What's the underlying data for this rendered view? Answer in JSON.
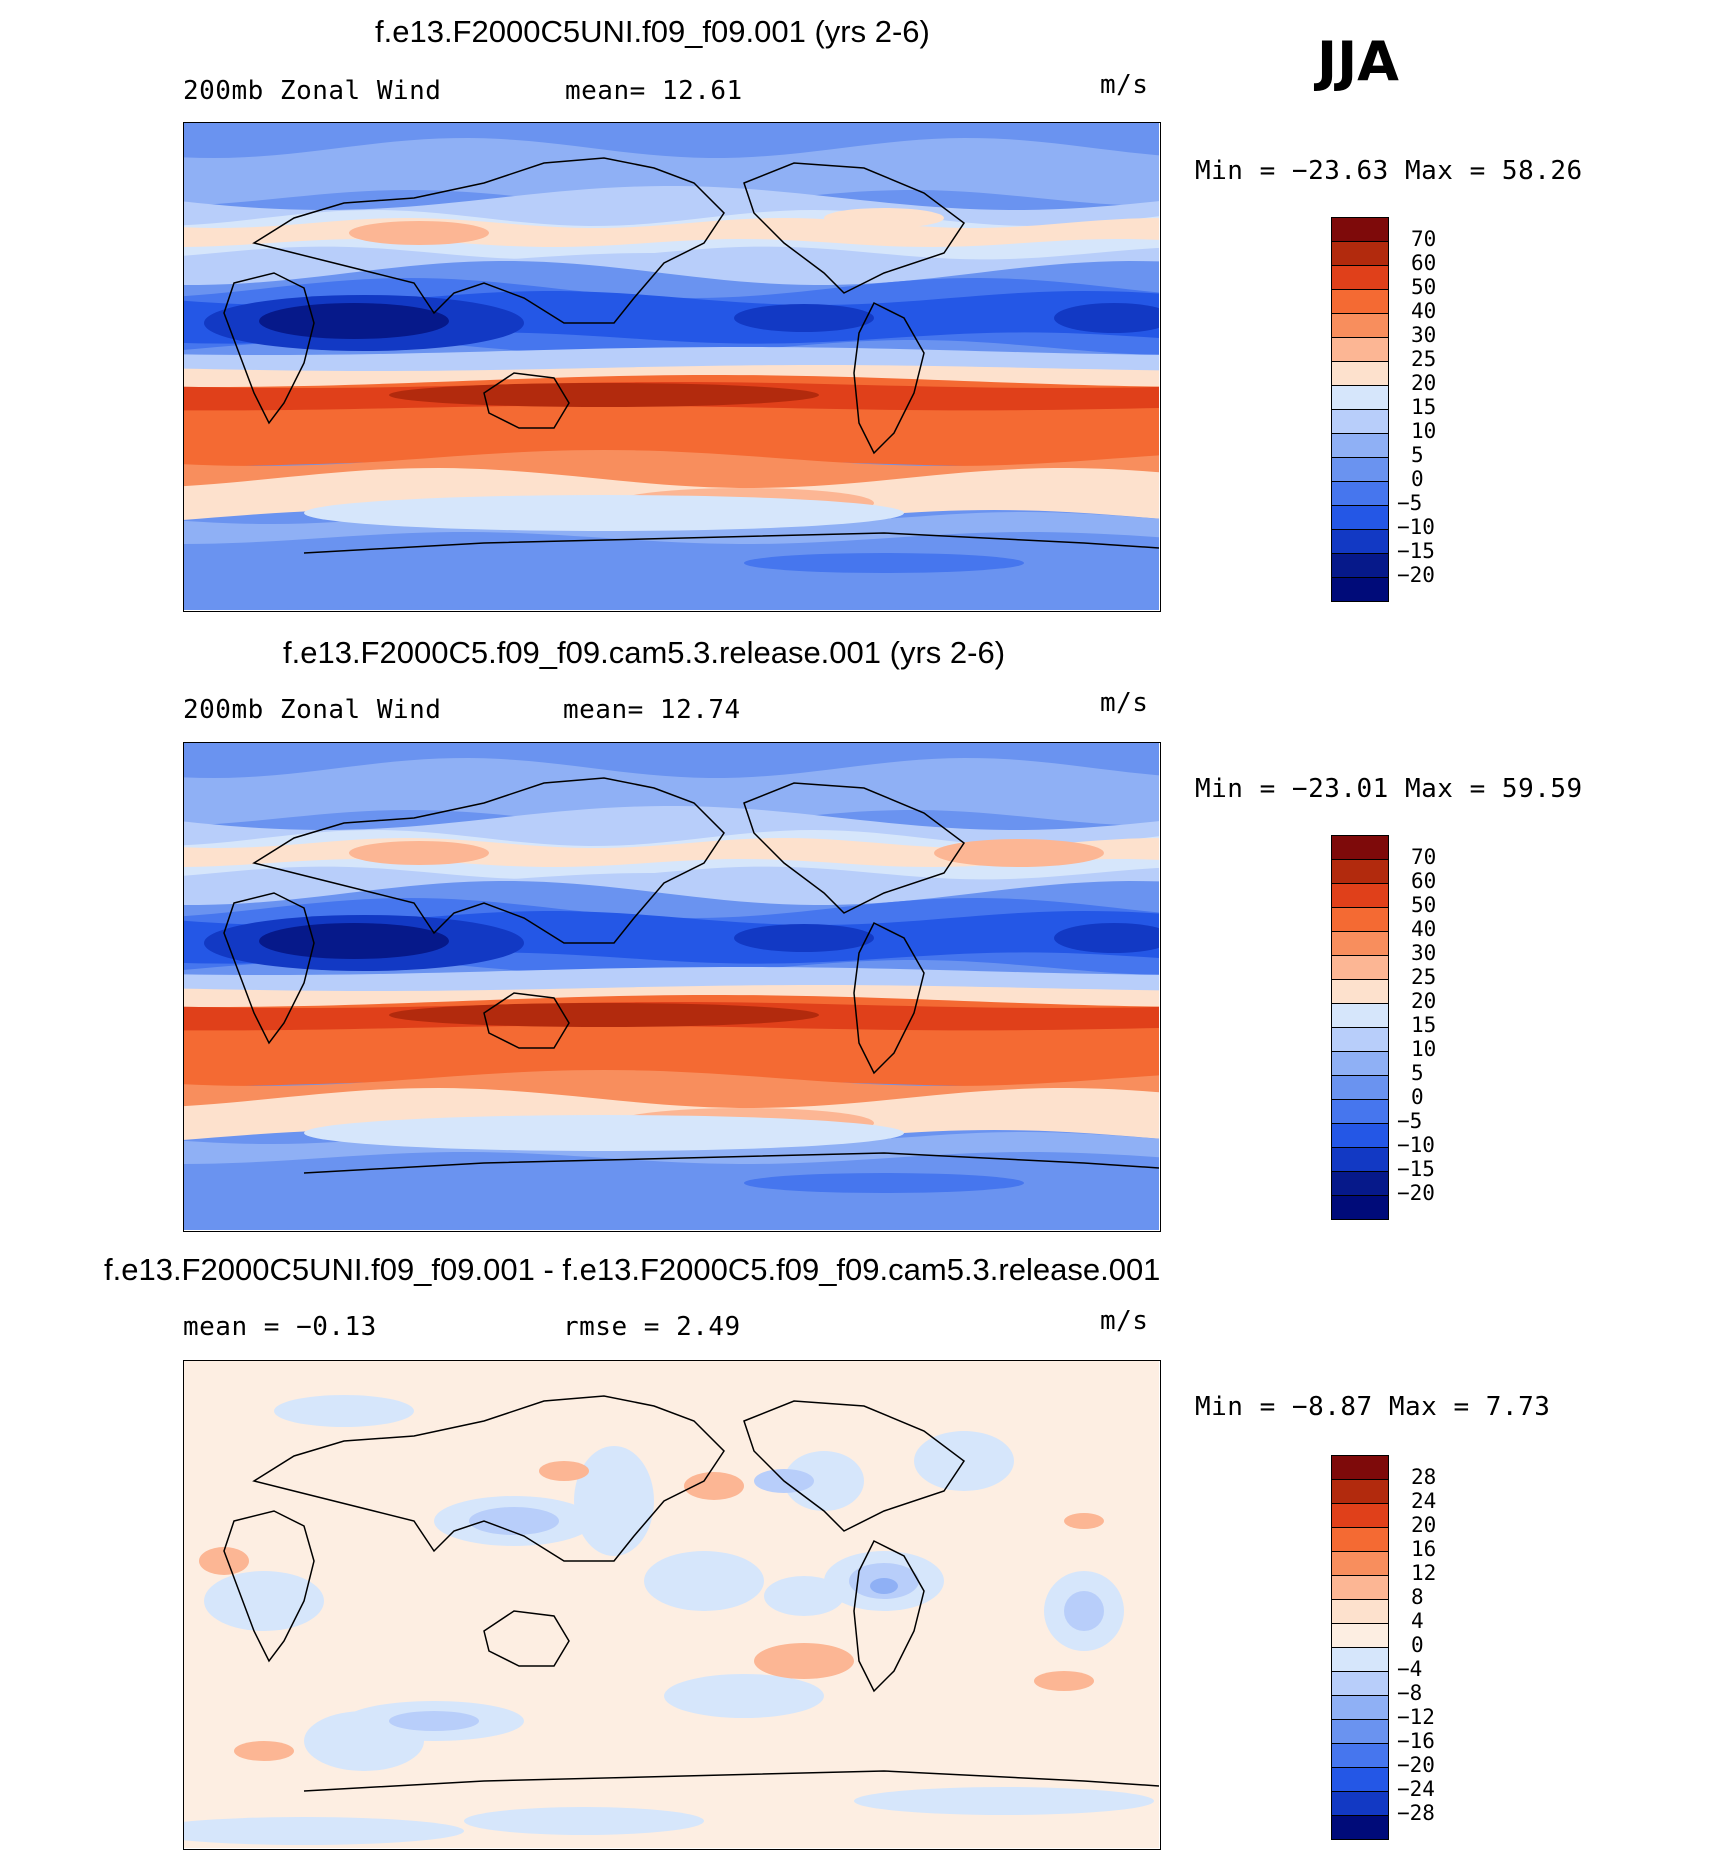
{
  "season": "JJA",
  "panels": [
    {
      "title": "f.e13.F2000C5UNI.f09_f09.001 (yrs 2-6)",
      "variable": "200mb Zonal Wind",
      "stat1": "mean=   12.61",
      "stat2": "",
      "units": "m/s",
      "minmax": "Min = −23.63 Max =   58.26",
      "levels": [
        "70",
        "60",
        "50",
        "40",
        "30",
        "25",
        "20",
        "15",
        "10",
        "5",
        "0",
        "−5",
        "−10",
        "−15",
        "−20"
      ],
      "colors": [
        "#7e0a0a",
        "#b22a0d",
        "#e0401a",
        "#f46a33",
        "#f88e5d",
        "#fcb694",
        "#fde1cd",
        "#d6e6fb",
        "#b8cefa",
        "#8fb0f5",
        "#6a93f0",
        "#4676ee",
        "#2457e6",
        "#1239c4",
        "#06198a",
        "#000b79"
      ],
      "kind": "wind",
      "variant": 0
    },
    {
      "title": "f.e13.F2000C5.f09_f09.cam5.3.release.001 (yrs 2-6)",
      "variable": "200mb Zonal Wind",
      "stat1": "mean=   12.74",
      "stat2": "",
      "units": "m/s",
      "minmax": "Min = −23.01 Max =   59.59",
      "levels": [
        "70",
        "60",
        "50",
        "40",
        "30",
        "25",
        "20",
        "15",
        "10",
        "5",
        "0",
        "−5",
        "−10",
        "−15",
        "−20"
      ],
      "colors": [
        "#7e0a0a",
        "#b22a0d",
        "#e0401a",
        "#f46a33",
        "#f88e5d",
        "#fcb694",
        "#fde1cd",
        "#d6e6fb",
        "#b8cefa",
        "#8fb0f5",
        "#6a93f0",
        "#4676ee",
        "#2457e6",
        "#1239c4",
        "#06198a",
        "#000b79"
      ],
      "kind": "wind",
      "variant": 1
    },
    {
      "title": "f.e13.F2000C5UNI.f09_f09.001 - f.e13.F2000C5.f09_f09.cam5.3.release.001",
      "variable": "mean =   −0.13",
      "stat1": "rmse =    2.49",
      "stat2": "",
      "units": "m/s",
      "minmax": "Min =   −8.87 Max =    7.73",
      "levels": [
        "28",
        "24",
        "20",
        "16",
        "12",
        "8",
        "4",
        "0",
        "−4",
        "−8",
        "−12",
        "−16",
        "−20",
        "−24",
        "−28"
      ],
      "colors": [
        "#7e0a0a",
        "#b22a0d",
        "#e0401a",
        "#f46a33",
        "#f88e5d",
        "#fcb694",
        "#fde1cd",
        "#fdeee2",
        "#d6e6fb",
        "#b8cefa",
        "#8fb0f5",
        "#6a93f0",
        "#4676ee",
        "#2457e6",
        "#1239c4",
        "#000b79"
      ],
      "kind": "diff",
      "variant": 2
    }
  ]
}
